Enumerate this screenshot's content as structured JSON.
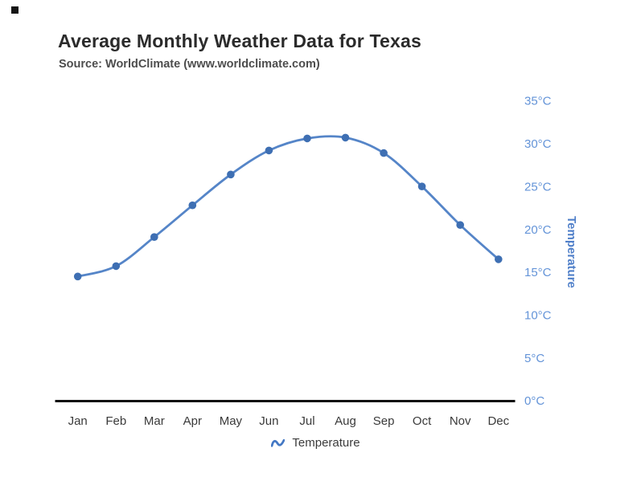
{
  "corner_marker": {
    "present": true
  },
  "colors": {
    "line": "#5585c8",
    "marker": "#3e6fb3",
    "tick_label": "#6494d8",
    "axis_title": "#4f7fc9",
    "axis_line": "#0f0f0f",
    "month_label": "#3a3a3a",
    "title_text": "#2b2b2b",
    "subtitle_text": "#4d4d4d",
    "legend_text": "#3b3b3b",
    "legend_icon": "#4478c4",
    "background": "#ffffff"
  },
  "legend": {
    "label": "Temperature",
    "icon": "spline-wave-icon"
  },
  "chart_data": {
    "type": "line",
    "smooth": true,
    "title": "Average Monthly Weather Data for Texas",
    "subtitle": "Source: WorldClimate (www.worldclimate.com)",
    "categories": [
      "Jan",
      "Feb",
      "Mar",
      "Apr",
      "May",
      "Jun",
      "Jul",
      "Aug",
      "Sep",
      "Oct",
      "Nov",
      "Dec"
    ],
    "series": [
      {
        "name": "Temperature",
        "values": [
          14.5,
          15.7,
          19.1,
          22.8,
          26.4,
          29.2,
          30.6,
          30.7,
          28.9,
          25.0,
          20.5,
          16.5
        ]
      }
    ],
    "xlabel": "",
    "ylabel": "Temperature",
    "ylim": [
      0,
      37.5
    ],
    "yticks": [
      35,
      30,
      25,
      20,
      15,
      10,
      5,
      0
    ],
    "ytick_suffix": "°C",
    "y_axis_side": "right",
    "legend_position": "bottom",
    "grid": false,
    "markers": true
  }
}
